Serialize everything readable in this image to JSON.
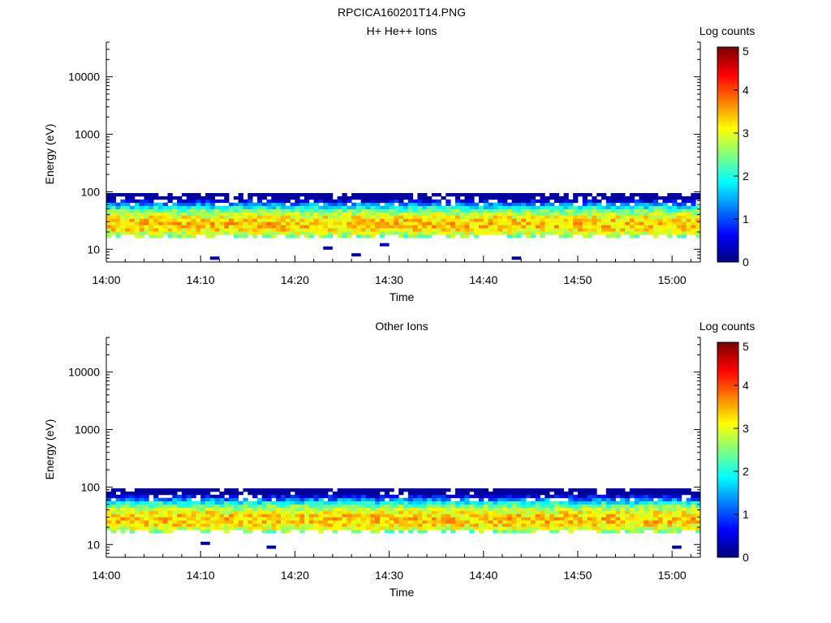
{
  "figure": {
    "title": "RPCICA160201T14.PNG"
  },
  "chart_data": [
    {
      "type": "heatmap",
      "title": "H+ He++ Ions",
      "xlabel": "Time",
      "ylabel": "Energy (eV)",
      "x_ticks": [
        "14:00",
        "14:10",
        "14:20",
        "14:30",
        "14:40",
        "14:50",
        "15:00"
      ],
      "y_ticks": [
        "10",
        "100",
        "1000",
        "10000"
      ],
      "y_scale": "log",
      "ylim": [
        6,
        40000
      ],
      "xlim": [
        "14:00",
        "15:03"
      ],
      "colorbar": {
        "label": "Log counts",
        "ticks": [
          "0",
          "1",
          "2",
          "3",
          "4",
          "5"
        ],
        "range": [
          0,
          5
        ],
        "colormap": "jet"
      },
      "band": {
        "energy_eV": [
          16,
          95
        ],
        "peak_energy_eV": 27,
        "peak_log_counts": 3.4,
        "time_range": [
          "14:00",
          "15:03"
        ]
      },
      "isolated_points": [
        {
          "time": "14:11",
          "energy_eV": 7,
          "log_counts": 0.2
        },
        {
          "time": "14:23",
          "energy_eV": 10.5,
          "log_counts": 0.2
        },
        {
          "time": "14:26",
          "energy_eV": 8,
          "log_counts": 0.2
        },
        {
          "time": "14:29",
          "energy_eV": 12,
          "log_counts": 0.3
        },
        {
          "time": "14:43",
          "energy_eV": 7,
          "log_counts": 0.2
        }
      ]
    },
    {
      "type": "heatmap",
      "title": "Other Ions",
      "xlabel": "Time",
      "ylabel": "Energy (eV)",
      "x_ticks": [
        "14:00",
        "14:10",
        "14:20",
        "14:30",
        "14:40",
        "14:50",
        "15:00"
      ],
      "y_ticks": [
        "10",
        "100",
        "1000",
        "10000"
      ],
      "y_scale": "log",
      "ylim": [
        6,
        40000
      ],
      "xlim": [
        "14:00",
        "15:03"
      ],
      "colorbar": {
        "label": "Log counts",
        "ticks": [
          "0",
          "1",
          "2",
          "3",
          "4",
          "5"
        ],
        "range": [
          0,
          5
        ],
        "colormap": "jet"
      },
      "band": {
        "energy_eV": [
          16,
          95
        ],
        "peak_energy_eV": 27,
        "peak_log_counts": 3.4,
        "time_range": [
          "14:00",
          "15:03"
        ]
      },
      "isolated_points": [
        {
          "time": "14:10",
          "energy_eV": 10.5,
          "log_counts": 0.2
        },
        {
          "time": "14:17",
          "energy_eV": 9,
          "log_counts": 0.2
        },
        {
          "time": "15:00",
          "energy_eV": 9,
          "log_counts": 0.2
        }
      ]
    }
  ]
}
